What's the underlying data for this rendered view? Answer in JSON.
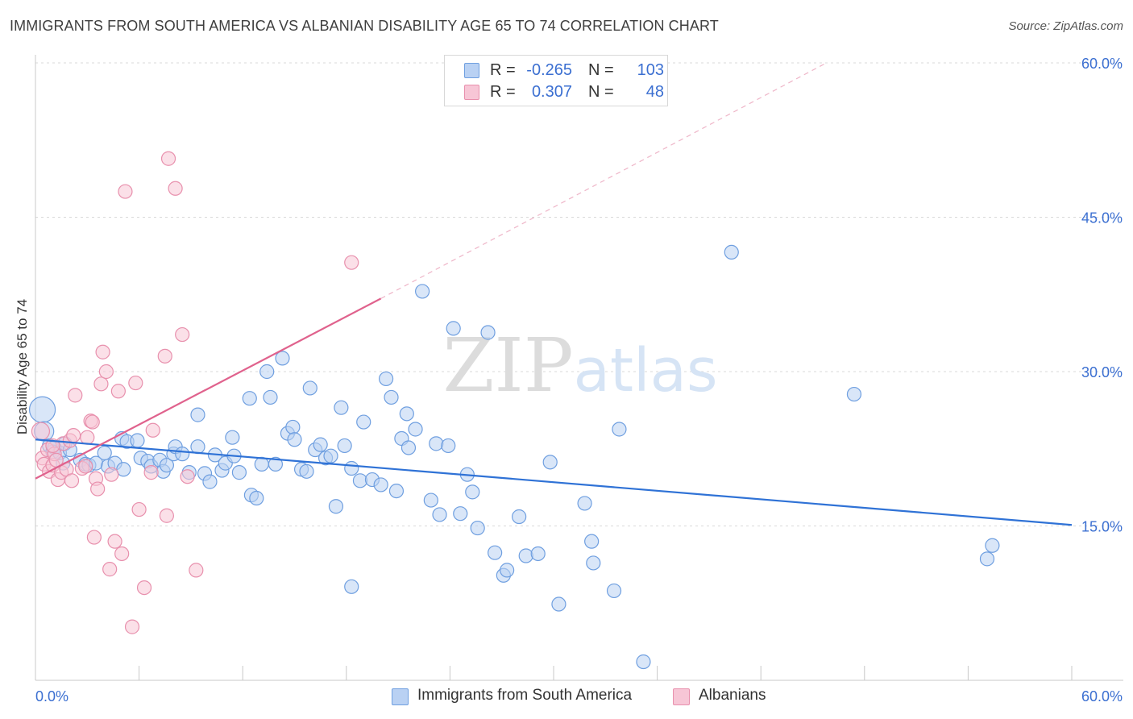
{
  "chart_data": {
    "type": "scatter",
    "title": "IMMIGRANTS FROM SOUTH AMERICA VS ALBANIAN DISABILITY AGE 65 TO 74 CORRELATION CHART",
    "source": "Source: ZipAtlas.com",
    "xlabel": "",
    "ylabel": "Disability Age 65 to 74",
    "xlim": [
      0,
      60
    ],
    "ylim": [
      0,
      60
    ],
    "x_tick_labels": [
      "0.0%",
      "60.0%"
    ],
    "y_tick_values": [
      15,
      30,
      45,
      60
    ],
    "y_tick_labels": [
      "15.0%",
      "30.0%",
      "45.0%",
      "60.0%"
    ],
    "grid": true,
    "watermark": "ZIPatlas",
    "legend": [
      {
        "r_label": "R =",
        "r_value": "-0.265",
        "n_label": "N =",
        "n_value": "103"
      },
      {
        "r_label": "R =",
        "r_value": "0.307",
        "n_label": "N =",
        "n_value": "48"
      }
    ],
    "series": [
      {
        "name": "Immigrants from South America",
        "color": "#6f9fe0",
        "fill": "#b9d1f3",
        "line_color": "#2f72d6",
        "trend": {
          "x": [
            0,
            60
          ],
          "y": [
            23.4,
            15.1
          ],
          "dashed_extension": false
        },
        "points": [
          [
            0.4,
            26.3
          ],
          [
            0.5,
            24.2
          ],
          [
            0.8,
            22.8
          ],
          [
            1.0,
            22.2
          ],
          [
            1.1,
            22.6
          ],
          [
            1.4,
            22.1
          ],
          [
            1.6,
            21.1
          ],
          [
            1.7,
            23.0
          ],
          [
            2.0,
            22.4
          ],
          [
            2.6,
            21.4
          ],
          [
            2.9,
            21.0
          ],
          [
            3.1,
            20.9
          ],
          [
            3.5,
            21.1
          ],
          [
            4.0,
            22.1
          ],
          [
            4.2,
            20.8
          ],
          [
            4.6,
            21.1
          ],
          [
            5.1,
            20.5
          ],
          [
            5.0,
            23.5
          ],
          [
            5.3,
            23.2
          ],
          [
            5.9,
            23.3
          ],
          [
            6.1,
            21.6
          ],
          [
            6.5,
            21.3
          ],
          [
            6.7,
            20.8
          ],
          [
            7.2,
            21.4
          ],
          [
            7.4,
            20.3
          ],
          [
            7.6,
            20.9
          ],
          [
            8.0,
            22.0
          ],
          [
            8.1,
            22.7
          ],
          [
            8.5,
            22.0
          ],
          [
            8.9,
            20.2
          ],
          [
            9.4,
            22.7
          ],
          [
            9.4,
            25.8
          ],
          [
            9.8,
            20.1
          ],
          [
            10.1,
            19.3
          ],
          [
            10.4,
            21.9
          ],
          [
            10.8,
            20.4
          ],
          [
            11.0,
            21.1
          ],
          [
            11.4,
            23.6
          ],
          [
            11.5,
            21.8
          ],
          [
            11.8,
            20.2
          ],
          [
            12.4,
            27.4
          ],
          [
            12.5,
            18.0
          ],
          [
            12.8,
            17.7
          ],
          [
            13.1,
            21.0
          ],
          [
            13.4,
            30.0
          ],
          [
            13.6,
            27.5
          ],
          [
            13.9,
            21.0
          ],
          [
            14.3,
            31.3
          ],
          [
            14.6,
            24.0
          ],
          [
            14.9,
            24.6
          ],
          [
            15.0,
            23.4
          ],
          [
            15.4,
            20.5
          ],
          [
            15.7,
            20.3
          ],
          [
            15.9,
            28.4
          ],
          [
            16.2,
            22.4
          ],
          [
            16.5,
            22.9
          ],
          [
            16.8,
            21.6
          ],
          [
            17.1,
            21.8
          ],
          [
            17.4,
            16.9
          ],
          [
            17.7,
            26.5
          ],
          [
            17.9,
            22.8
          ],
          [
            18.3,
            20.6
          ],
          [
            18.8,
            19.4
          ],
          [
            19.0,
            25.1
          ],
          [
            19.5,
            19.5
          ],
          [
            20.0,
            19.0
          ],
          [
            20.3,
            29.3
          ],
          [
            20.6,
            27.5
          ],
          [
            20.9,
            18.4
          ],
          [
            21.2,
            23.5
          ],
          [
            21.5,
            25.9
          ],
          [
            21.6,
            22.6
          ],
          [
            22.0,
            24.4
          ],
          [
            22.4,
            37.8
          ],
          [
            22.9,
            17.5
          ],
          [
            23.2,
            23.0
          ],
          [
            23.4,
            16.1
          ],
          [
            23.9,
            22.8
          ],
          [
            24.2,
            34.2
          ],
          [
            24.6,
            16.2
          ],
          [
            25.0,
            20.0
          ],
          [
            25.3,
            18.3
          ],
          [
            25.6,
            14.8
          ],
          [
            26.2,
            33.8
          ],
          [
            26.6,
            12.4
          ],
          [
            27.1,
            10.2
          ],
          [
            27.3,
            10.7
          ],
          [
            28.0,
            15.9
          ],
          [
            28.4,
            12.1
          ],
          [
            29.1,
            12.3
          ],
          [
            29.8,
            21.2
          ],
          [
            30.3,
            7.4
          ],
          [
            31.8,
            17.2
          ],
          [
            32.2,
            13.5
          ],
          [
            32.3,
            11.4
          ],
          [
            33.5,
            8.7
          ],
          [
            33.8,
            24.4
          ],
          [
            35.2,
            1.8
          ],
          [
            40.3,
            41.6
          ],
          [
            47.4,
            27.8
          ],
          [
            55.1,
            11.8
          ],
          [
            55.4,
            13.1
          ],
          [
            18.3,
            9.1
          ]
        ]
      },
      {
        "name": "Albanians",
        "color": "#e890ad",
        "fill": "#f7c6d6",
        "line_color": "#e0628d",
        "trend": {
          "x": [
            0,
            20
          ],
          "y": [
            19.6,
            37.1
          ],
          "dashed_extension": true,
          "dashed_to": [
            45.8,
            60
          ]
        },
        "points": [
          [
            0.3,
            24.2
          ],
          [
            0.4,
            21.6
          ],
          [
            0.5,
            21.0
          ],
          [
            0.7,
            22.4
          ],
          [
            0.8,
            20.3
          ],
          [
            1.0,
            20.9
          ],
          [
            1.1,
            22.0
          ],
          [
            1.2,
            21.4
          ],
          [
            1.3,
            19.5
          ],
          [
            1.5,
            20.2
          ],
          [
            1.6,
            23.0
          ],
          [
            1.8,
            20.5
          ],
          [
            2.0,
            23.3
          ],
          [
            2.1,
            19.4
          ],
          [
            2.2,
            23.8
          ],
          [
            2.3,
            27.7
          ],
          [
            2.7,
            20.6
          ],
          [
            3.0,
            23.6
          ],
          [
            3.2,
            25.2
          ],
          [
            3.3,
            25.1
          ],
          [
            3.5,
            19.6
          ],
          [
            3.6,
            18.6
          ],
          [
            3.8,
            28.8
          ],
          [
            3.9,
            31.9
          ],
          [
            4.1,
            30.0
          ],
          [
            4.4,
            20.0
          ],
          [
            4.6,
            13.5
          ],
          [
            4.8,
            28.1
          ],
          [
            5.0,
            12.3
          ],
          [
            5.2,
            47.5
          ],
          [
            5.6,
            5.2
          ],
          [
            5.8,
            28.9
          ],
          [
            6.0,
            16.6
          ],
          [
            6.3,
            9.0
          ],
          [
            6.7,
            20.2
          ],
          [
            6.8,
            24.3
          ],
          [
            7.5,
            31.5
          ],
          [
            7.6,
            16.0
          ],
          [
            7.7,
            50.7
          ],
          [
            8.1,
            47.8
          ],
          [
            8.5,
            33.6
          ],
          [
            8.8,
            19.8
          ],
          [
            9.3,
            10.7
          ],
          [
            18.3,
            40.6
          ],
          [
            3.4,
            13.9
          ],
          [
            4.3,
            10.8
          ],
          [
            2.9,
            20.8
          ],
          [
            1.0,
            22.8
          ]
        ]
      }
    ]
  }
}
